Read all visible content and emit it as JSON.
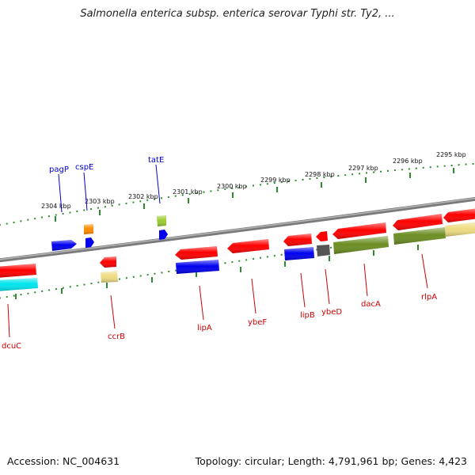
{
  "title": "Salmonella enterica subsp. enterica serovar Typhi str. Ty2, ...",
  "footer": {
    "accession": "Accession: NC_004631",
    "topology": "Topology: circular; Length: 4,791,961 bp; Genes: 4,423"
  },
  "colors": {
    "backbone": "#808080",
    "ticks": "#2e8b2e",
    "forward_label": "#0000cc",
    "reverse_label": "#cc0000"
  },
  "tick_labels": [
    "2295 kbp",
    "2296 kbp",
    "2297 kbp",
    "2298 kbp",
    "2299 kbp",
    "2300 kbp",
    "2301 kbp",
    "2302 kbp",
    "2303 kbp",
    "2304 kbp"
  ],
  "genes_labeled": [
    {
      "name": "pagP",
      "strand": "forward"
    },
    {
      "name": "cspE",
      "strand": "forward"
    },
    {
      "name": "tatE",
      "strand": "forward"
    },
    {
      "name": "dcuC",
      "strand": "reverse"
    },
    {
      "name": "ccrB",
      "strand": "reverse"
    },
    {
      "name": "lipA",
      "strand": "reverse"
    },
    {
      "name": "ybeF",
      "strand": "reverse"
    },
    {
      "name": "lipB",
      "strand": "reverse"
    },
    {
      "name": "ybeD",
      "strand": "reverse"
    },
    {
      "name": "dacA",
      "strand": "reverse"
    },
    {
      "name": "rlpA",
      "strand": "reverse"
    }
  ],
  "features": [
    {
      "id": "f-dcuC",
      "color": "#ff0000",
      "strand": "reverse"
    },
    {
      "id": "f-dcuC-cds",
      "color": "#00e5ee",
      "strand": "reverse"
    },
    {
      "id": "f-pagP",
      "color": "#0000ee",
      "strand": "forward"
    },
    {
      "id": "f-cspE",
      "color": "#ff8c00",
      "strand": "forward"
    },
    {
      "id": "f-cspE-cds",
      "color": "#0000ee",
      "strand": "forward"
    },
    {
      "id": "f-ccrB",
      "color": "#ff0000",
      "strand": "reverse"
    },
    {
      "id": "f-ccrB-cds",
      "color": "#eedc82",
      "strand": "reverse"
    },
    {
      "id": "f-tatE",
      "color": "#9acd32",
      "strand": "forward"
    },
    {
      "id": "f-tatE-cds",
      "color": "#0000ee",
      "strand": "forward"
    },
    {
      "id": "f-lipA",
      "color": "#ff0000",
      "strand": "reverse"
    },
    {
      "id": "f-lipA-cds",
      "color": "#0000ee",
      "strand": "reverse"
    },
    {
      "id": "f-ybeF",
      "color": "#ff0000",
      "strand": "reverse"
    },
    {
      "id": "f-lipB",
      "color": "#ff0000",
      "strand": "reverse"
    },
    {
      "id": "f-lipB-cds",
      "color": "#0000ee",
      "strand": "reverse"
    },
    {
      "id": "f-ybeD",
      "color": "#ff0000",
      "strand": "reverse"
    },
    {
      "id": "f-ybeD-cds",
      "color": "#555555",
      "strand": "reverse"
    },
    {
      "id": "f-dacA",
      "color": "#ff0000",
      "strand": "reverse"
    },
    {
      "id": "f-dacA-cds",
      "color": "#6b8e23",
      "strand": "reverse"
    },
    {
      "id": "f-rlpA",
      "color": "#ff0000",
      "strand": "reverse"
    },
    {
      "id": "f-rlpA-cds",
      "color": "#6b8e23",
      "strand": "reverse"
    },
    {
      "id": "f-edge",
      "color": "#ff0000",
      "strand": "reverse"
    },
    {
      "id": "f-edge-cds",
      "color": "#eedc82",
      "strand": "reverse"
    }
  ]
}
